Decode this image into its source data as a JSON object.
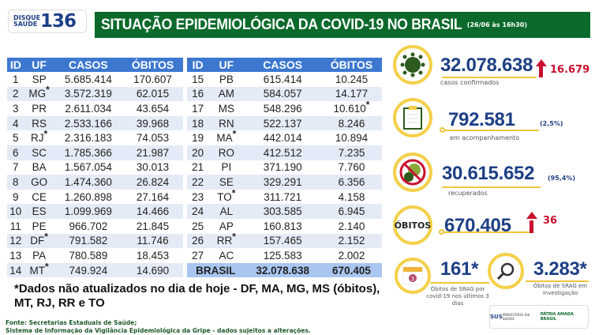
{
  "header": {
    "logo_small": "DISQUE SAÚDE",
    "logo_number": "136",
    "title": "SITUAÇÃO EPIDEMIOLÓGICA DA COVID-19 NO BRASIL",
    "date": "(26/06 às 16h30)"
  },
  "table": {
    "columns": [
      "ID",
      "UF",
      "CASOS",
      "ÓBITOS"
    ],
    "left_rows": [
      [
        "1",
        "SP",
        "5.685.414",
        "170.607",
        ""
      ],
      [
        "2",
        "MG",
        "3.572.319",
        "62.015",
        "*"
      ],
      [
        "3",
        "PR",
        "2.611.034",
        "43.654",
        ""
      ],
      [
        "4",
        "RS",
        "2.533.166",
        "39.968",
        ""
      ],
      [
        "5",
        "RJ",
        "2.316.183",
        "74.053",
        "*"
      ],
      [
        "6",
        "SC",
        "1.785.366",
        "21.987",
        ""
      ],
      [
        "7",
        "BA",
        "1.567.054",
        "30.013",
        ""
      ],
      [
        "8",
        "GO",
        "1.474.360",
        "26.824",
        ""
      ],
      [
        "9",
        "CE",
        "1.260.898",
        "27.164",
        ""
      ],
      [
        "10",
        "ES",
        "1.099.969",
        "14.466",
        ""
      ],
      [
        "11",
        "PE",
        "966.702",
        "21.845",
        ""
      ],
      [
        "12",
        "DF",
        "791.582",
        "11.746",
        "*"
      ],
      [
        "13",
        "PA",
        "780.589",
        "18.453",
        ""
      ],
      [
        "14",
        "MT",
        "749.924",
        "14.690",
        "*"
      ]
    ],
    "right_rows": [
      [
        "15",
        "PB",
        "615.414",
        "10.245",
        ""
      ],
      [
        "16",
        "AM",
        "584.057",
        "14.177",
        ""
      ],
      [
        "17",
        "MS",
        "548.296",
        "10.610",
        "obitos*"
      ],
      [
        "18",
        "RN",
        "522.137",
        "8.246",
        ""
      ],
      [
        "19",
        "MA",
        "442.014",
        "10.894",
        "*"
      ],
      [
        "20",
        "RO",
        "412.512",
        "7.235",
        ""
      ],
      [
        "21",
        "PI",
        "371.190",
        "7.760",
        ""
      ],
      [
        "22",
        "SE",
        "329.291",
        "6.356",
        ""
      ],
      [
        "23",
        "TO",
        "311.721",
        "4.158",
        "*"
      ],
      [
        "24",
        "AL",
        "303.585",
        "6.945",
        ""
      ],
      [
        "25",
        "AP",
        "160.813",
        "2.140",
        ""
      ],
      [
        "26",
        "RR",
        "157.465",
        "2.152",
        "*"
      ],
      [
        "27",
        "AC",
        "125.583",
        "2.002",
        ""
      ]
    ],
    "total": {
      "label": "BRASIL",
      "casos": "32.078.638",
      "obitos": "670.405"
    }
  },
  "asterisk": "*",
  "note": "*Dados não atualizados no dia de hoje - DF, MA, MG, MS (óbitos), MT, RJ, RR e TO",
  "source": {
    "line1": "Fonte: Secretarias Estaduais de Saúde;",
    "line2": "Sistema de Informação da Vigilância Epidemiológica da Gripe - dados sujeitos a alterações."
  },
  "stats": {
    "confirmed": {
      "value": "32.078.638",
      "delta": "16.679",
      "label": "casos confirmados",
      "icon": "virus-icon"
    },
    "monitoring": {
      "value": "792.581",
      "pct": "(2,5%)",
      "label": "em acompanhamento",
      "icon": "clipboard-icon"
    },
    "recovered": {
      "value": "30.615.652",
      "pct": "(95,4%)",
      "label": "recuperados",
      "icon": "no-virus-icon"
    },
    "deaths": {
      "circle_label": "ÓBITOS",
      "value": "670.405",
      "delta": "36"
    },
    "srag_recent": {
      "value": "161*",
      "label": "Óbitos de SRAG por covid-19 nos últimos 3 dias",
      "calendar_number": "3"
    },
    "srag_investigation": {
      "value": "3.283*",
      "label": "Óbitos de SRAG em investigação"
    }
  },
  "footer_logos": {
    "sus": "SUS",
    "ministry": "MINISTÉRIO DA SAÚDE",
    "gov": "PÁTRIA AMADA BRASIL"
  },
  "colors": {
    "banner": "#0b6a2b",
    "table_header": "#3c78d0",
    "accent_yellow": "#f4d04a",
    "navy": "#1d3f86",
    "red": "#c8102e"
  }
}
